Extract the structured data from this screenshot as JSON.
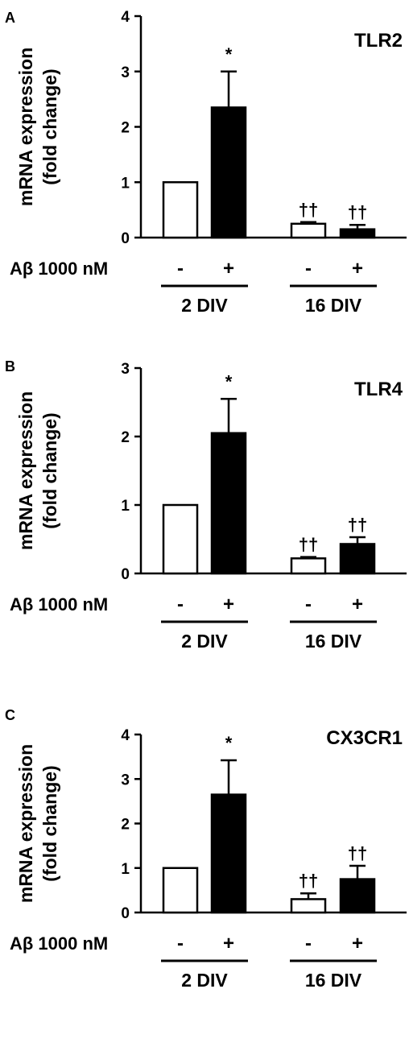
{
  "condition_label": "Aβ 1000 nM",
  "chart_data": [
    {
      "panel": "A",
      "type": "bar",
      "title": "TLR2",
      "ylabel_line1": "mRNA expression",
      "ylabel_line2": "(fold change)",
      "ylim": [
        0,
        4
      ],
      "yticks": [
        "0",
        "1",
        "2",
        "3",
        "4"
      ],
      "groups": [
        "2 DIV",
        "16 DIV"
      ],
      "treatment": [
        "-",
        "+",
        "-",
        "+"
      ],
      "values": [
        1.0,
        2.35,
        0.25,
        0.15
      ],
      "errors": [
        0,
        0.65,
        0.03,
        0.08
      ],
      "fills": [
        "#ffffff",
        "#000000",
        "#ffffff",
        "#000000"
      ],
      "annotations": [
        "",
        "*",
        "††",
        "††"
      ]
    },
    {
      "panel": "B",
      "type": "bar",
      "title": "TLR4",
      "ylabel_line1": "mRNA expression",
      "ylabel_line2": "(fold change)",
      "ylim": [
        0,
        3
      ],
      "yticks": [
        "0",
        "1",
        "2",
        "3"
      ],
      "groups": [
        "2 DIV",
        "16 DIV"
      ],
      "treatment": [
        "-",
        "+",
        "-",
        "+"
      ],
      "values": [
        1.0,
        2.05,
        0.22,
        0.43
      ],
      "errors": [
        0,
        0.5,
        0.02,
        0.1
      ],
      "fills": [
        "#ffffff",
        "#000000",
        "#ffffff",
        "#000000"
      ],
      "annotations": [
        "",
        "*",
        "††",
        "††"
      ]
    },
    {
      "panel": "C",
      "type": "bar",
      "title": "CX3CR1",
      "ylabel_line1": "mRNA expression",
      "ylabel_line2": "(fold change)",
      "ylim": [
        0,
        4
      ],
      "yticks": [
        "0",
        "1",
        "2",
        "3",
        "4"
      ],
      "groups": [
        "2 DIV",
        "16 DIV"
      ],
      "treatment": [
        "-",
        "+",
        "-",
        "+"
      ],
      "values": [
        1.0,
        2.65,
        0.3,
        0.75
      ],
      "errors": [
        0,
        0.77,
        0.13,
        0.3
      ],
      "fills": [
        "#ffffff",
        "#000000",
        "#ffffff",
        "#000000"
      ],
      "annotations": [
        "",
        "*",
        "††",
        "††"
      ]
    }
  ]
}
